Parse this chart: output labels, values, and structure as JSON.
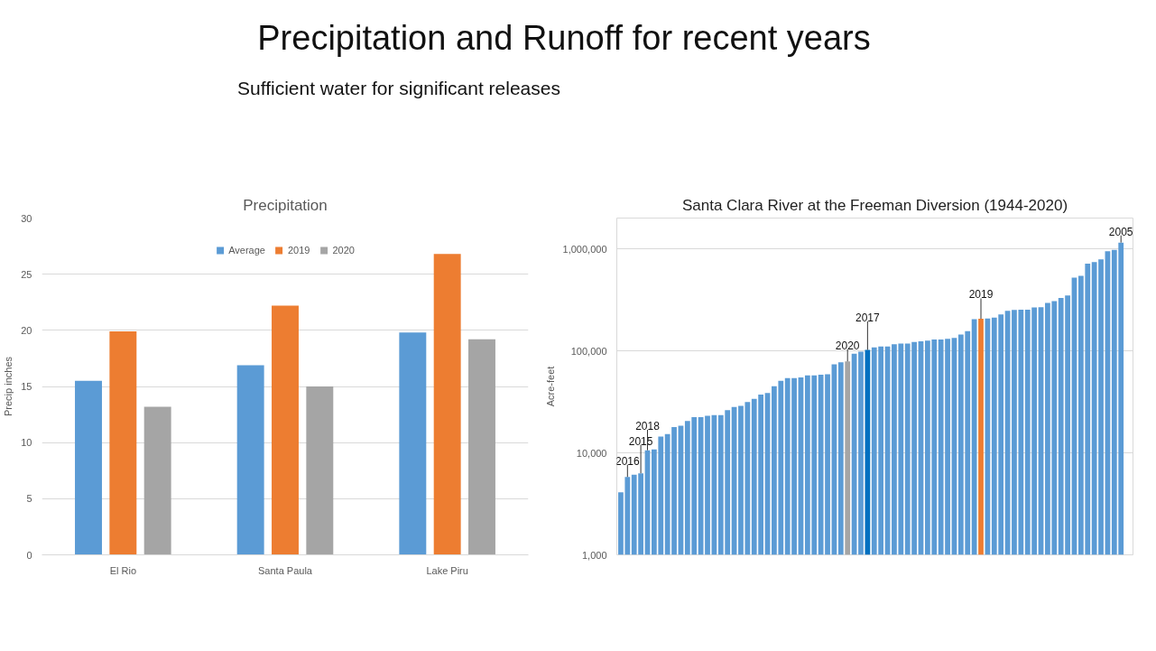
{
  "chart_data": [
    {
      "type": "bar",
      "title": "Precipitation",
      "ylabel": "Precip inches",
      "categories": [
        "El Rio",
        "Santa Paula",
        "Lake Piru"
      ],
      "series": [
        {
          "name": "Average",
          "color": "#5b9bd5",
          "values": [
            15.5,
            16.9,
            19.8
          ]
        },
        {
          "name": "2019",
          "color": "#ed7d31",
          "values": [
            19.9,
            22.2,
            26.8
          ]
        },
        {
          "name": "2020",
          "color": "#a5a5a5",
          "values": [
            13.2,
            15.0,
            19.2
          ]
        }
      ],
      "ylim": [
        0,
        30
      ],
      "yticks": [
        0,
        5,
        10,
        15,
        20,
        25,
        30
      ],
      "grid": "y",
      "legend": "top",
      "annotations": [
        "Precipitation and Runoff for recent years",
        "Sufficient water for significant releases"
      ]
    },
    {
      "type": "bar",
      "title": "Santa Clara River at the Freeman Diversion (1944-2020)",
      "ylabel": "Acre-feet",
      "categories": [
        null,
        null,
        null,
        null,
        null,
        null,
        null,
        null,
        null,
        null,
        null,
        null,
        null,
        null,
        null,
        null,
        null,
        null,
        null,
        null,
        null,
        null,
        null,
        null,
        null,
        null,
        null,
        null,
        null,
        null,
        null,
        null,
        null,
        null,
        null,
        null,
        null,
        null,
        null,
        null,
        null,
        null,
        null,
        null,
        null,
        null,
        null,
        null,
        null,
        null,
        null,
        null,
        null,
        null,
        null,
        null,
        null,
        null,
        null,
        null,
        null,
        null,
        null,
        null,
        null,
        null,
        null,
        null,
        null,
        null,
        null,
        null,
        null,
        null,
        null,
        null
      ],
      "values": [
        4100,
        5800,
        6100,
        6300,
        10600,
        10800,
        14400,
        15300,
        17900,
        18400,
        20500,
        22400,
        22400,
        23100,
        23400,
        23400,
        26200,
        28200,
        28800,
        31500,
        33800,
        37200,
        38600,
        44900,
        50700,
        54100,
        54100,
        54900,
        57300,
        57300,
        58200,
        59000,
        73800,
        77000,
        78700,
        93800,
        97800,
        102000,
        108000,
        110000,
        110000,
        116000,
        118000,
        118000,
        122000,
        124000,
        126000,
        129000,
        129000,
        131000,
        134000,
        144000,
        156000,
        204000,
        206000,
        207000,
        212000,
        227000,
        247000,
        251000,
        253000,
        253000,
        266000,
        268000,
        294000,
        307000,
        330000,
        349000,
        520000,
        543000,
        715000,
        741000,
        786000,
        948000,
        977000,
        1150000
      ],
      "colors": [
        "#5b9bd5",
        "#5b9bd5",
        "#5b9bd5",
        "#5b9bd5",
        "#5b9bd5",
        "#5b9bd5",
        "#5b9bd5",
        "#5b9bd5",
        "#5b9bd5",
        "#5b9bd5",
        "#5b9bd5",
        "#5b9bd5",
        "#5b9bd5",
        "#5b9bd5",
        "#5b9bd5",
        "#5b9bd5",
        "#5b9bd5",
        "#5b9bd5",
        "#5b9bd5",
        "#5b9bd5",
        "#5b9bd5",
        "#5b9bd5",
        "#5b9bd5",
        "#5b9bd5",
        "#5b9bd5",
        "#5b9bd5",
        "#5b9bd5",
        "#5b9bd5",
        "#5b9bd5",
        "#5b9bd5",
        "#5b9bd5",
        "#5b9bd5",
        "#5b9bd5",
        "#5b9bd5",
        "#a5a5a5",
        "#5b9bd5",
        "#5b9bd5",
        "#0070c0",
        "#5b9bd5",
        "#5b9bd5",
        "#5b9bd5",
        "#5b9bd5",
        "#5b9bd5",
        "#5b9bd5",
        "#5b9bd5",
        "#5b9bd5",
        "#5b9bd5",
        "#5b9bd5",
        "#5b9bd5",
        "#5b9bd5",
        "#5b9bd5",
        "#5b9bd5",
        "#5b9bd5",
        "#5b9bd5",
        "#ed7d31",
        "#5b9bd5",
        "#5b9bd5",
        "#5b9bd5",
        "#5b9bd5",
        "#5b9bd5",
        "#5b9bd5",
        "#5b9bd5",
        "#5b9bd5",
        "#5b9bd5",
        "#5b9bd5",
        "#5b9bd5",
        "#5b9bd5",
        "#5b9bd5",
        "#5b9bd5",
        "#5b9bd5",
        "#5b9bd5",
        "#5b9bd5",
        "#5b9bd5",
        "#5b9bd5",
        "#5b9bd5",
        "#5b9bd5"
      ],
      "log": true,
      "ylim": [
        1000,
        2000000
      ],
      "yticks": [
        {
          "value": 1000,
          "label": "1,000"
        },
        {
          "value": 10000,
          "label": "10,000"
        },
        {
          "value": 100000,
          "label": "100,000"
        },
        {
          "value": 1000000,
          "label": "1,000,000"
        }
      ],
      "grid": "y",
      "tick_labels": "y",
      "annotations": [
        {
          "text": "2016",
          "y": 5800
        },
        {
          "text": "2015",
          "y": 6300
        },
        {
          "text": "2018",
          "y": 10600
        },
        {
          "text": "2020",
          "y": 78700
        },
        {
          "text": "2017",
          "y": 102000
        },
        {
          "text": "2019",
          "y": 206000
        },
        {
          "text": "2005",
          "y": 1150000
        }
      ]
    }
  ]
}
